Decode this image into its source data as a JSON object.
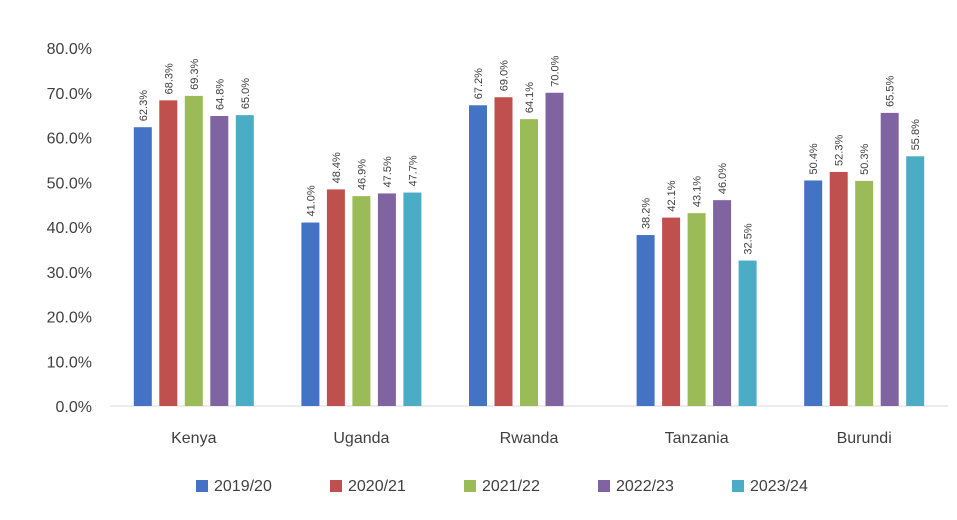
{
  "chart_data": {
    "type": "bar",
    "categories": [
      "Kenya",
      "Uganda",
      "Rwanda",
      "Tanzania",
      "Burundi"
    ],
    "series": [
      {
        "name": "2019/20",
        "color": "#4472C4",
        "values": [
          62.3,
          41.0,
          67.2,
          38.2,
          50.4
        ],
        "labels": [
          "62.3%",
          "41.0%",
          "67.2%",
          "38.2%",
          "50.4%"
        ]
      },
      {
        "name": "2020/21",
        "color": "#C0504D",
        "values": [
          68.3,
          48.4,
          69.0,
          42.1,
          52.3
        ],
        "labels": [
          "68.3%",
          "48.4%",
          "69.0%",
          "42.1%",
          "52.3%"
        ]
      },
      {
        "name": "2021/22",
        "color": "#9BBB59",
        "values": [
          69.3,
          46.9,
          64.1,
          43.1,
          50.3
        ],
        "labels": [
          "69.3%",
          "46.9%",
          "64.1%",
          "43.1%",
          "50.3%"
        ]
      },
      {
        "name": "2022/23",
        "color": "#8064A2",
        "values": [
          64.8,
          47.5,
          70.0,
          46.0,
          65.5
        ],
        "labels": [
          "64.8%",
          "47.5%",
          "70.0%",
          "46.0%",
          "65.5%"
        ]
      },
      {
        "name": "2023/24",
        "color": "#4BACC6",
        "values": [
          65.0,
          47.7,
          null,
          32.5,
          55.8
        ],
        "labels": [
          "65.0%",
          "47.7%",
          "",
          "32.5%",
          "55.8%"
        ]
      }
    ],
    "y_ticks": [
      "0.0%",
      "10.0%",
      "20.0%",
      "30.0%",
      "40.0%",
      "50.0%",
      "60.0%",
      "70.0%",
      "80.0%"
    ],
    "ylim": [
      0,
      80
    ],
    "grid": false,
    "legend_position": "bottom"
  }
}
